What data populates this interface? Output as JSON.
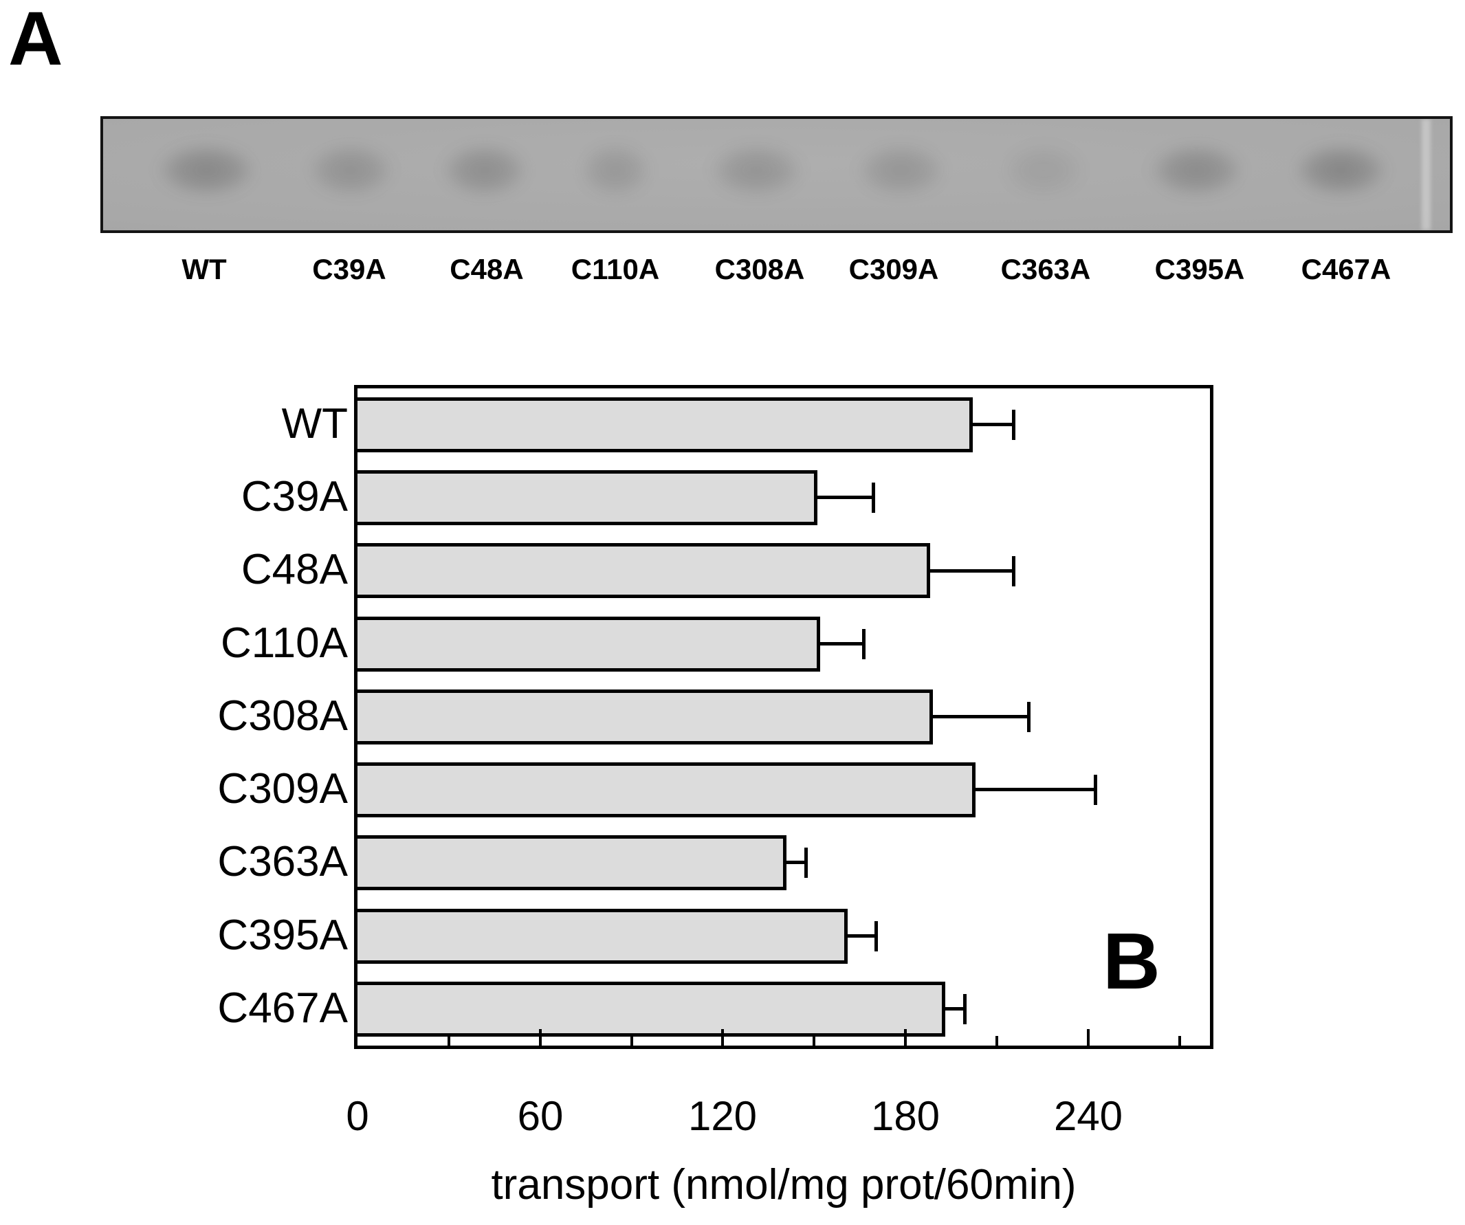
{
  "figure": {
    "panel_a_label": "A",
    "panel_b_label": "B"
  },
  "panel_a": {
    "lane_labels": [
      "WT",
      "C39A",
      "C48A",
      "C110A",
      "C308A",
      "C309A",
      "C363A",
      "C395A",
      "C467A"
    ],
    "band_intensities": [
      0.3,
      0.22,
      0.26,
      0.18,
      0.22,
      0.2,
      0.1,
      0.28,
      0.32
    ]
  },
  "chart_data": {
    "type": "bar",
    "orientation": "horizontal",
    "title": "",
    "categories": [
      "WT",
      "C39A",
      "C48A",
      "C110A",
      "C308A",
      "C309A",
      "C363A",
      "C395A",
      "C467A"
    ],
    "values": [
      202,
      151,
      188,
      152,
      189,
      203,
      141,
      161,
      193
    ],
    "errors_plus": [
      14,
      19,
      28,
      15,
      32,
      40,
      7,
      10,
      7
    ],
    "xlabel": "transport (nmol/mg prot/60min)",
    "xticks_major": [
      0,
      60,
      120,
      180,
      240
    ],
    "xticks_minor": [
      30,
      90,
      150,
      210,
      270
    ],
    "xlim": [
      0,
      280
    ],
    "grid": false,
    "bar_color": "#dcdcdc",
    "bar_border_color": "#000000",
    "blot_background_color": "#a8a8a8"
  }
}
